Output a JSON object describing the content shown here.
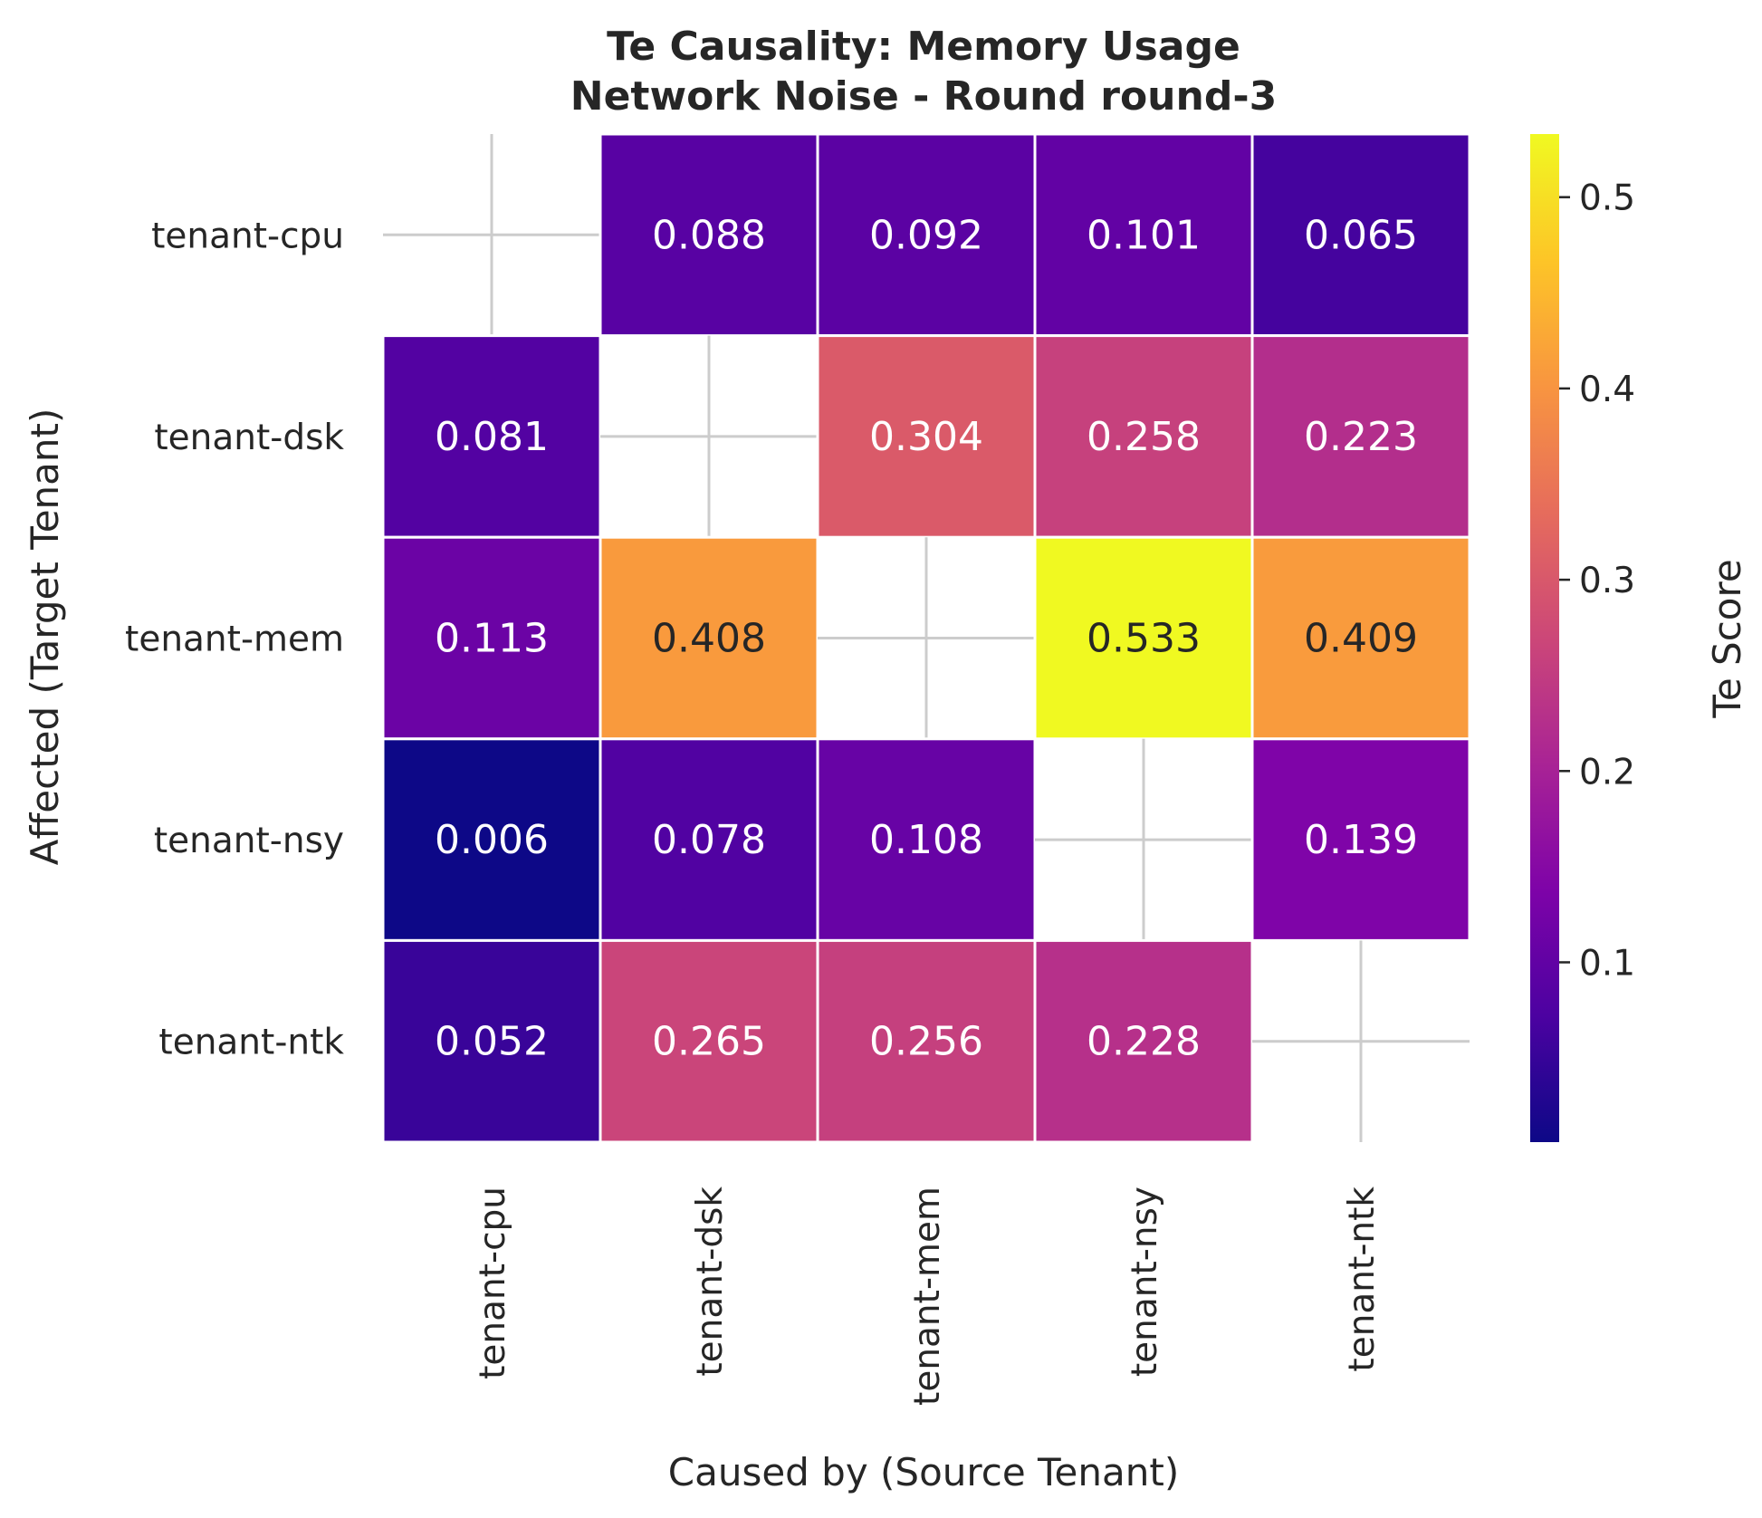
{
  "chart_data": {
    "type": "heatmap",
    "title_line1": "Te Causality: Memory Usage",
    "title_line2": "Network Noise - Round round-3",
    "xlabel": "Caused by (Source Tenant)",
    "ylabel": "Affected (Target Tenant)",
    "x_categories": [
      "tenant-cpu",
      "tenant-dsk",
      "tenant-mem",
      "tenant-nsy",
      "tenant-ntk"
    ],
    "y_categories": [
      "tenant-cpu",
      "tenant-dsk",
      "tenant-mem",
      "tenant-nsy",
      "tenant-ntk"
    ],
    "values": [
      [
        null,
        0.088,
        0.092,
        0.101,
        0.065
      ],
      [
        0.081,
        null,
        0.304,
        0.258,
        0.223
      ],
      [
        0.113,
        0.408,
        null,
        0.533,
        0.409
      ],
      [
        0.006,
        0.078,
        0.108,
        null,
        0.139
      ],
      [
        0.052,
        0.265,
        0.256,
        0.228,
        null
      ]
    ],
    "colormap": "plasma",
    "vmin": 0.006,
    "vmax": 0.533,
    "colorbar": {
      "label": "Te Score",
      "ticks": [
        0.1,
        0.2,
        0.3,
        0.4,
        0.5
      ],
      "tick_labels": [
        "0.1",
        "0.2",
        "0.3",
        "0.4",
        "0.5"
      ]
    },
    "missing_marker_color": "#cccccc",
    "text_dark_color": "#262626",
    "text_light_color": "#ffffff"
  }
}
